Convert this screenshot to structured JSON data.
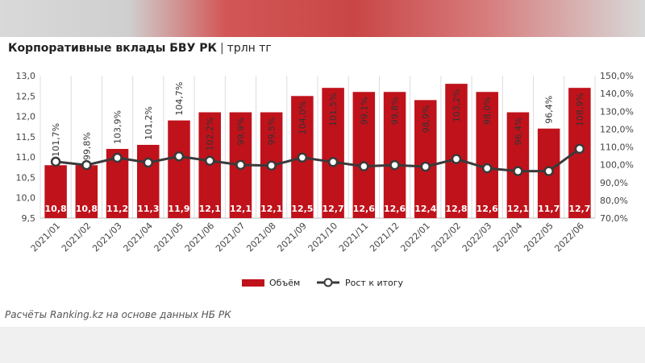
{
  "header": {
    "title": "Корпоративные вклады БВУ РК",
    "separator": "|",
    "unit": "трлн тг"
  },
  "footnote": "Расчёты Ranking.kz на основе данных НБ РК",
  "colors": {
    "bar": "#c0121b",
    "line": "#3a3a3a",
    "marker_fill": "#ffffff"
  },
  "chart_data": {
    "type": "bar",
    "categories": [
      "2021/01",
      "2021/02",
      "2021/03",
      "2021/04",
      "2021/05",
      "2021/06",
      "2021/07",
      "2021/08",
      "2021/09",
      "2021/10",
      "2021/11",
      "2021/12",
      "2022/01",
      "2022/02",
      "2022/03",
      "2022/04",
      "2022/05",
      "2022/06"
    ],
    "series": [
      {
        "name": "Объём",
        "type": "bar",
        "axis": "left",
        "values": [
          10.8,
          10.8,
          11.2,
          11.3,
          11.9,
          12.1,
          12.1,
          12.1,
          12.5,
          12.7,
          12.6,
          12.6,
          12.4,
          12.8,
          12.6,
          12.1,
          11.7,
          12.7
        ],
        "labels": [
          "10,8",
          "10,8",
          "11,2",
          "11,3",
          "11,9",
          "12,1",
          "12,1",
          "12,1",
          "12,5",
          "12,7",
          "12,6",
          "12,6",
          "12,4",
          "12,8",
          "12,6",
          "12,1",
          "11,7",
          "12,7"
        ]
      },
      {
        "name": "Рост к итогу",
        "type": "line",
        "axis": "right",
        "values": [
          101.7,
          99.8,
          103.9,
          101.2,
          104.7,
          102.2,
          99.9,
          99.5,
          104.0,
          101.5,
          99.1,
          99.8,
          98.9,
          103.2,
          98.0,
          96.4,
          96.4,
          108.9
        ],
        "labels": [
          "101,7%",
          "99,8%",
          "103,9%",
          "101,2%",
          "104,7%",
          "102,2%",
          "99,9%",
          "99,5%",
          "104,0%",
          "101,5%",
          "99,1%",
          "99,8%",
          "98,9%",
          "103,2%",
          "98,0%",
          "96,4%",
          "96,4%",
          "108,9%"
        ]
      }
    ],
    "ylim": [
      9.5,
      13.0
    ],
    "y_ticks": [
      "9,5",
      "10,0",
      "10,5",
      "11,0",
      "11,5",
      "12,0",
      "12,5",
      "13,0"
    ],
    "y2lim": [
      70,
      150
    ],
    "y2_ticks": [
      "70,0%",
      "80,0%",
      "90,0%",
      "100,0%",
      "110,0%",
      "120,0%",
      "130,0%",
      "140,0%",
      "150,0%"
    ],
    "grid": "vertical",
    "legend": "bottom-center"
  }
}
